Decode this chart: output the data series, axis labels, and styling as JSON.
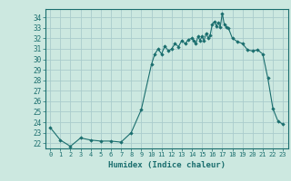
{
  "title": "",
  "xlabel": "Humidex (Indice chaleur)",
  "ylabel": "",
  "bg_color": "#cce8e0",
  "grid_color": "#aacccc",
  "line_color": "#1a6e6e",
  "marker_color": "#1a6e6e",
  "xlim": [
    -0.5,
    23.5
  ],
  "ylim": [
    21.5,
    34.8
  ],
  "yticks": [
    22,
    23,
    24,
    25,
    26,
    27,
    28,
    29,
    30,
    31,
    32,
    33,
    34
  ],
  "xticks": [
    0,
    1,
    2,
    3,
    4,
    5,
    6,
    7,
    8,
    9,
    10,
    11,
    12,
    13,
    14,
    15,
    16,
    17,
    18,
    19,
    20,
    21,
    22,
    23
  ],
  "x": [
    0,
    1,
    2,
    3,
    4,
    5,
    6,
    7,
    8,
    9,
    10,
    10.33,
    10.67,
    11,
    11.33,
    11.67,
    12,
    12.33,
    12.67,
    13,
    13.33,
    13.67,
    14,
    14.2,
    14.4,
    14.6,
    14.8,
    15,
    15.2,
    15.4,
    15.6,
    15.8,
    16,
    16.2,
    16.4,
    16.6,
    16.8,
    17,
    17.2,
    17.4,
    17.6,
    18,
    18.5,
    19,
    19.5,
    20,
    20.5,
    21,
    21.5,
    22,
    22.5,
    23
  ],
  "y": [
    23.5,
    22.3,
    21.7,
    22.5,
    22.3,
    22.2,
    22.2,
    22.1,
    23.0,
    25.2,
    29.5,
    30.5,
    31.0,
    30.5,
    31.3,
    30.8,
    31.0,
    31.5,
    31.2,
    31.8,
    31.5,
    31.9,
    32.0,
    31.8,
    31.5,
    32.2,
    31.8,
    32.2,
    31.8,
    32.5,
    32.0,
    32.3,
    33.3,
    33.6,
    33.2,
    33.5,
    33.1,
    34.4,
    33.3,
    33.1,
    33.0,
    32.0,
    31.7,
    31.5,
    30.9,
    30.8,
    30.9,
    30.5,
    28.2,
    25.3,
    24.1,
    23.8
  ]
}
